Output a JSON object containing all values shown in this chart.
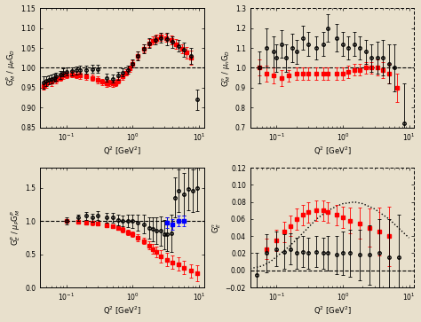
{
  "fig_width": 4.74,
  "fig_height": 3.63,
  "dpi": 100,
  "bg_color": "#e8e0cc",
  "TL": {
    "ylabel": "G$_M^P$ / $\\mu_P$G$_D$",
    "xlabel": "Q$^2$ [GeV$^2$]",
    "ylim": [
      0.85,
      1.15
    ],
    "xlim": [
      0.04,
      12
    ],
    "yticks": [
      0.85,
      0.9,
      0.95,
      1.0,
      1.05,
      1.1,
      1.15
    ],
    "dashed_y": 1.0,
    "xb": [
      0.045,
      0.05,
      0.055,
      0.06,
      0.065,
      0.07,
      0.08,
      0.09,
      0.1,
      0.12,
      0.14,
      0.16,
      0.2,
      0.25,
      0.3,
      0.4,
      0.5,
      0.6,
      0.7,
      0.85,
      1.0,
      1.2,
      1.5,
      1.8,
      2.2,
      2.7,
      3.3,
      4.0,
      5.0,
      6.0,
      7.5,
      9.5
    ],
    "yb": [
      0.963,
      0.967,
      0.97,
      0.972,
      0.975,
      0.978,
      0.983,
      0.988,
      0.99,
      0.992,
      0.994,
      0.995,
      0.995,
      0.997,
      0.997,
      0.975,
      0.973,
      0.98,
      0.988,
      0.995,
      1.01,
      1.03,
      1.048,
      1.062,
      1.07,
      1.075,
      1.072,
      1.065,
      1.055,
      1.045,
      1.03,
      0.92
    ],
    "eb": [
      0.015,
      0.012,
      0.012,
      0.012,
      0.01,
      0.01,
      0.01,
      0.01,
      0.01,
      0.01,
      0.01,
      0.01,
      0.01,
      0.01,
      0.01,
      0.01,
      0.01,
      0.01,
      0.01,
      0.01,
      0.01,
      0.012,
      0.012,
      0.012,
      0.012,
      0.012,
      0.015,
      0.015,
      0.015,
      0.018,
      0.02,
      0.025
    ],
    "xr": [
      0.045,
      0.05,
      0.06,
      0.07,
      0.08,
      0.09,
      0.1,
      0.12,
      0.14,
      0.16,
      0.2,
      0.25,
      0.3,
      0.35,
      0.4,
      0.45,
      0.5,
      0.55,
      0.6,
      0.7,
      0.8,
      0.9,
      1.0,
      1.2,
      1.5,
      1.8,
      2.0,
      2.3,
      2.7,
      3.2,
      3.8,
      4.5,
      5.5,
      6.5,
      7.5
    ],
    "yr": [
      0.955,
      0.96,
      0.965,
      0.97,
      0.975,
      0.98,
      0.982,
      0.984,
      0.982,
      0.98,
      0.978,
      0.975,
      0.97,
      0.965,
      0.96,
      0.963,
      0.96,
      0.962,
      0.968,
      0.978,
      0.988,
      0.998,
      1.01,
      1.03,
      1.048,
      1.062,
      1.068,
      1.073,
      1.078,
      1.075,
      1.07,
      1.06,
      1.048,
      1.038,
      1.025
    ],
    "er": [
      0.01,
      0.01,
      0.01,
      0.008,
      0.008,
      0.008,
      0.008,
      0.008,
      0.008,
      0.008,
      0.008,
      0.008,
      0.008,
      0.008,
      0.008,
      0.008,
      0.008,
      0.008,
      0.008,
      0.008,
      0.008,
      0.008,
      0.008,
      0.01,
      0.01,
      0.01,
      0.01,
      0.01,
      0.01,
      0.01,
      0.012,
      0.012,
      0.012,
      0.015,
      0.018
    ]
  },
  "TR": {
    "ylabel": "G$_M^n$ / $\\mu_n$G$_D$",
    "xlabel": "Q$^2$ [GeV$^2$]",
    "ylim": [
      0.7,
      1.3
    ],
    "xlim": [
      0.04,
      12
    ],
    "yticks": [
      0.7,
      0.8,
      0.9,
      1.0,
      1.1,
      1.2,
      1.3
    ],
    "dashed_y": 1.0,
    "xb": [
      0.055,
      0.07,
      0.09,
      0.1,
      0.12,
      0.14,
      0.17,
      0.2,
      0.25,
      0.3,
      0.4,
      0.5,
      0.6,
      0.8,
      1.0,
      1.2,
      1.5,
      1.8,
      2.2,
      2.7,
      3.3,
      4.0,
      5.0,
      6.0,
      8.5
    ],
    "yb": [
      1.0,
      1.1,
      1.08,
      1.05,
      1.12,
      1.05,
      1.1,
      1.08,
      1.15,
      1.12,
      1.1,
      1.12,
      1.2,
      1.15,
      1.12,
      1.1,
      1.12,
      1.1,
      1.08,
      1.05,
      1.05,
      1.05,
      1.02,
      1.0,
      0.72
    ],
    "eb": [
      0.08,
      0.1,
      0.08,
      0.07,
      0.07,
      0.07,
      0.07,
      0.06,
      0.06,
      0.06,
      0.06,
      0.06,
      0.07,
      0.07,
      0.06,
      0.06,
      0.06,
      0.06,
      0.06,
      0.07,
      0.08,
      0.09,
      0.1,
      0.12,
      0.2
    ],
    "xr": [
      0.055,
      0.07,
      0.09,
      0.12,
      0.15,
      0.2,
      0.25,
      0.3,
      0.4,
      0.5,
      0.6,
      0.8,
      1.0,
      1.2,
      1.5,
      1.8,
      2.2,
      2.7,
      3.3,
      4.0,
      5.0,
      6.5
    ],
    "yr": [
      1.0,
      0.97,
      0.96,
      0.95,
      0.96,
      0.97,
      0.97,
      0.97,
      0.97,
      0.97,
      0.97,
      0.97,
      0.97,
      0.98,
      0.99,
      0.99,
      1.0,
      1.0,
      1.0,
      0.99,
      0.97,
      0.9
    ],
    "er": [
      0.04,
      0.04,
      0.04,
      0.04,
      0.03,
      0.03,
      0.03,
      0.03,
      0.03,
      0.03,
      0.03,
      0.03,
      0.03,
      0.03,
      0.03,
      0.03,
      0.03,
      0.03,
      0.04,
      0.04,
      0.05,
      0.07
    ]
  },
  "BL": {
    "ylabel": "G$_E^P$ / $\\mu_P$G$_M^P$",
    "xlabel": "Q$^2$ [GeV$^2$]",
    "ylim": [
      0.0,
      1.8
    ],
    "xlim": [
      0.04,
      12
    ],
    "yticks": [
      0.0,
      0.5,
      1.0,
      1.5
    ],
    "dashed_y": 1.0,
    "xb": [
      0.1,
      0.15,
      0.2,
      0.25,
      0.3,
      0.4,
      0.5,
      0.6,
      0.7,
      0.85,
      1.0,
      1.2,
      1.5,
      1.8,
      2.0,
      2.3,
      2.7,
      3.0,
      3.3,
      3.8,
      4.3,
      5.0,
      6.0,
      7.0,
      8.0,
      9.5
    ],
    "yb": [
      1.0,
      1.05,
      1.08,
      1.05,
      1.08,
      1.05,
      1.05,
      1.02,
      1.0,
      1.0,
      1.0,
      0.98,
      0.95,
      0.9,
      0.88,
      0.85,
      0.85,
      0.8,
      0.8,
      0.82,
      1.35,
      1.45,
      1.4,
      1.48,
      1.45,
      1.5
    ],
    "eb": [
      0.05,
      0.05,
      0.06,
      0.06,
      0.07,
      0.07,
      0.07,
      0.08,
      0.08,
      0.09,
      0.1,
      0.12,
      0.14,
      0.16,
      0.18,
      0.2,
      0.22,
      0.22,
      0.25,
      0.28,
      0.3,
      0.32,
      0.32,
      0.32,
      0.32,
      0.35
    ],
    "xr": [
      0.1,
      0.15,
      0.2,
      0.25,
      0.3,
      0.4,
      0.5,
      0.6,
      0.7,
      0.85,
      1.0,
      1.2,
      1.5,
      1.8,
      2.0,
      2.3,
      2.7,
      3.3,
      4.0,
      5.0,
      6.0,
      7.5,
      9.5
    ],
    "yr": [
      1.0,
      0.99,
      0.98,
      0.97,
      0.96,
      0.94,
      0.92,
      0.9,
      0.87,
      0.83,
      0.8,
      0.75,
      0.7,
      0.63,
      0.58,
      0.53,
      0.47,
      0.42,
      0.38,
      0.35,
      0.3,
      0.25,
      0.22
    ],
    "er": [
      0.03,
      0.03,
      0.03,
      0.03,
      0.03,
      0.03,
      0.03,
      0.03,
      0.04,
      0.04,
      0.04,
      0.05,
      0.05,
      0.06,
      0.07,
      0.08,
      0.09,
      0.1,
      0.1,
      0.1,
      0.1,
      0.1,
      0.12
    ],
    "xbl": [
      3.3,
      4.0,
      5.0,
      6.0
    ],
    "ybl": [
      0.97,
      0.95,
      1.0,
      1.0
    ],
    "ebl": [
      0.08,
      0.08,
      0.08,
      0.08
    ]
  },
  "BR": {
    "ylabel": "G$_E^n$",
    "xlabel": "Q$^2$ [GeV$^2$]",
    "ylim": [
      -0.02,
      0.12
    ],
    "xlim": [
      0.04,
      12
    ],
    "yticks": [
      -0.02,
      0.0,
      0.02,
      0.04,
      0.06,
      0.08,
      0.1,
      0.12
    ],
    "dashed_y": 0.0,
    "xb": [
      0.05,
      0.07,
      0.1,
      0.13,
      0.16,
      0.2,
      0.25,
      0.3,
      0.4,
      0.5,
      0.6,
      0.8,
      1.0,
      1.3,
      1.8,
      2.5,
      3.5,
      5.0,
      7.0
    ],
    "yb": [
      -0.005,
      0.02,
      0.025,
      0.022,
      0.025,
      0.02,
      0.022,
      0.02,
      0.022,
      0.02,
      0.02,
      0.018,
      0.02,
      0.02,
      0.018,
      0.018,
      0.02,
      0.015,
      0.015
    ],
    "eb": [
      0.025,
      0.022,
      0.02,
      0.02,
      0.018,
      0.018,
      0.018,
      0.018,
      0.018,
      0.018,
      0.02,
      0.022,
      0.025,
      0.028,
      0.03,
      0.035,
      0.04,
      0.045,
      0.05
    ],
    "xr": [
      0.07,
      0.1,
      0.13,
      0.16,
      0.2,
      0.25,
      0.3,
      0.4,
      0.5,
      0.6,
      0.8,
      1.0,
      1.3,
      1.8,
      2.5,
      3.5,
      5.0
    ],
    "yr": [
      0.025,
      0.035,
      0.045,
      0.052,
      0.06,
      0.065,
      0.068,
      0.07,
      0.07,
      0.068,
      0.065,
      0.062,
      0.058,
      0.055,
      0.05,
      0.045,
      0.04
    ],
    "er": [
      0.012,
      0.012,
      0.012,
      0.012,
      0.012,
      0.012,
      0.012,
      0.012,
      0.012,
      0.012,
      0.012,
      0.012,
      0.015,
      0.018,
      0.022,
      0.028,
      0.035
    ],
    "fit_x": [
      0.04,
      0.06,
      0.08,
      0.1,
      0.15,
      0.2,
      0.3,
      0.4,
      0.6,
      0.8,
      1.0,
      1.5,
      2.0,
      3.0,
      5.0,
      8.0,
      10.0
    ],
    "fit_y": [
      0.002,
      0.005,
      0.01,
      0.016,
      0.027,
      0.036,
      0.05,
      0.06,
      0.07,
      0.075,
      0.078,
      0.08,
      0.078,
      0.072,
      0.06,
      0.045,
      0.038
    ]
  }
}
